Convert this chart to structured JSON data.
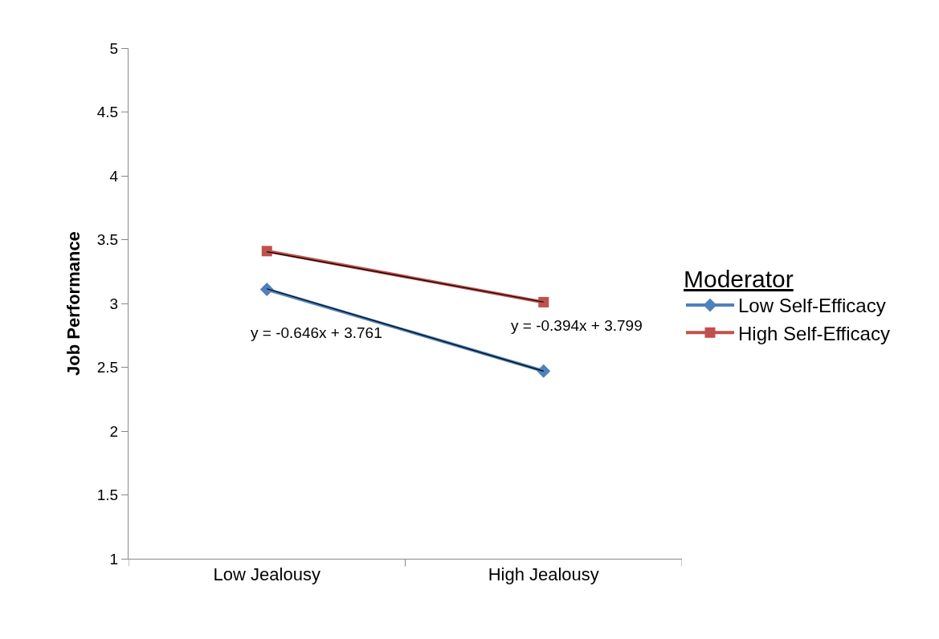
{
  "chart_data": {
    "type": "line",
    "ylabel": "Job Performance",
    "legend_title": "Moderator",
    "categories": [
      "Low Jealousy",
      "High Jealousy"
    ],
    "series": [
      {
        "name": "Low Self-Efficacy",
        "color": "#4f81bd",
        "marker": "diamond",
        "values": [
          3.11,
          2.47
        ]
      },
      {
        "name": "High Self-Efficacy",
        "color": "#c0504d",
        "marker": "square",
        "values": [
          3.41,
          3.01
        ]
      },
      {
        "color": "#000000",
        "marker": "none",
        "x": [
          "Low Jealousy",
          "High Jealousy"
        ],
        "values": [
          3.115,
          2.469
        ]
      },
      {
        "color": "#000000",
        "marker": "none",
        "x": [
          "Low Jealousy",
          "High Jealousy"
        ],
        "values": [
          3.405,
          3.011
        ]
      }
    ],
    "annotations": [
      "y = -0.646x + 3.761",
      "y = -0.394x + 3.799"
    ],
    "ylim": [
      1,
      5
    ],
    "yticks": [
      1,
      1.5,
      2,
      2.5,
      3,
      3.5,
      4,
      4.5,
      5
    ],
    "legend": "right"
  }
}
